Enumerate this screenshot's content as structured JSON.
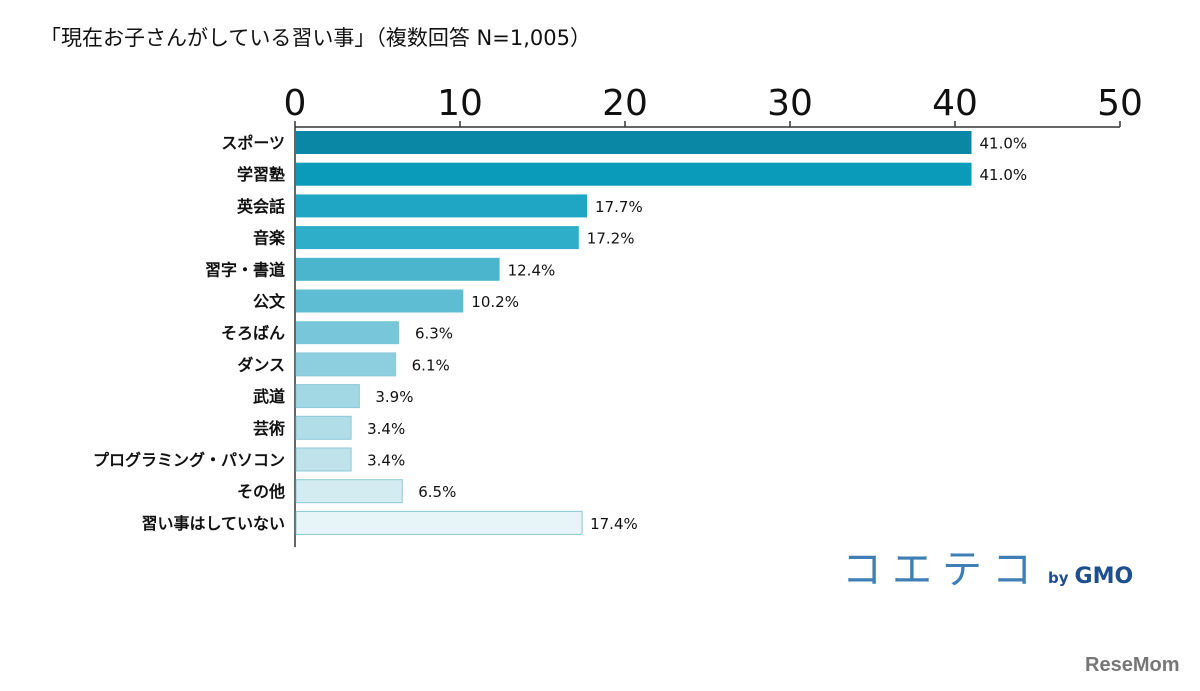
{
  "chart_data": {
    "type": "bar",
    "orientation": "horizontal",
    "title": "「現在お子さんがしている習い事」（複数回答 N=1,005）",
    "categories": [
      "スポーツ",
      "学習塾",
      "英会話",
      "音楽",
      "習字・書道",
      "公文",
      "そろばん",
      "ダンス",
      "武道",
      "芸術",
      "プログラミング・パソコン",
      "その他",
      "習い事はしていない"
    ],
    "values": [
      41.0,
      41.0,
      17.7,
      17.2,
      12.4,
      10.2,
      6.3,
      6.1,
      3.9,
      3.4,
      3.4,
      6.5,
      17.4
    ],
    "data_labels": [
      "41.0%",
      "41.0%",
      "17.7%",
      "17.2%",
      "12.4%",
      "10.2%",
      "6.3%",
      "6.1%",
      "3.9%",
      "3.4%",
      "3.4%",
      "6.5%",
      "17.4%"
    ],
    "xlim": [
      0,
      50
    ],
    "x_ticks": [
      "0",
      "10",
      "20",
      "30",
      "40",
      "50"
    ],
    "x_axis_position": "top",
    "grid": false,
    "colors": [
      "#0b87a6",
      "#0a9bbb",
      "#1fa6c4",
      "#2eaec9",
      "#4ab5cd",
      "#5fbdd3",
      "#78c6da",
      "#8ecfdf",
      "#a2d7e4",
      "#b1dde8",
      "#bfe2eb",
      "#d3ecf2",
      "#e7f4f8"
    ]
  },
  "logo": {
    "main": "コエテコ",
    "by": "by",
    "brand": "GMO",
    "watermark": "ReseMom"
  }
}
